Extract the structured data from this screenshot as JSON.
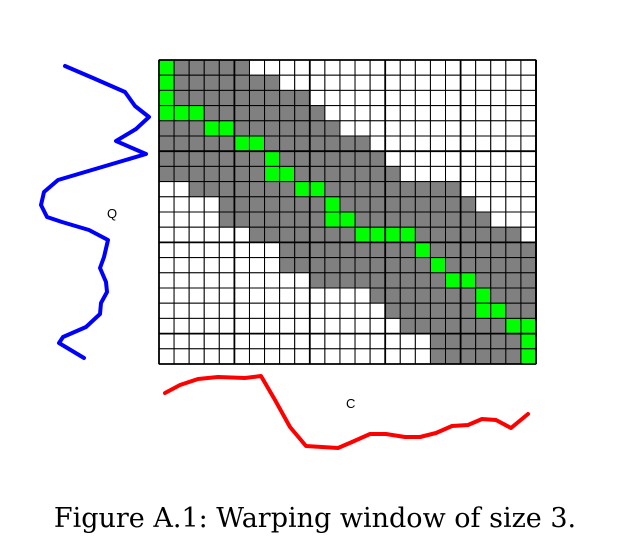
{
  "figure": {
    "caption": "Figure A.1: Warping window of size 3.",
    "q_label": "Q",
    "c_label": "C"
  },
  "grid": {
    "cols": 25,
    "rows": 20,
    "window_size": 3,
    "colors": {
      "cell": "#ffffff",
      "window": "#808080",
      "path": "#00ff00",
      "line": "#000000"
    },
    "path": [
      [
        0,
        0
      ],
      [
        0,
        1
      ],
      [
        0,
        2
      ],
      [
        0,
        3
      ],
      [
        1,
        3
      ],
      [
        2,
        3
      ],
      [
        3,
        4
      ],
      [
        4,
        4
      ],
      [
        5,
        5
      ],
      [
        6,
        5
      ],
      [
        7,
        6
      ],
      [
        7,
        7
      ],
      [
        8,
        7
      ],
      [
        9,
        8
      ],
      [
        10,
        8
      ],
      [
        11,
        9
      ],
      [
        11,
        10
      ],
      [
        12,
        10
      ],
      [
        13,
        11
      ],
      [
        14,
        11
      ],
      [
        15,
        11
      ],
      [
        16,
        11
      ],
      [
        17,
        12
      ],
      [
        18,
        13
      ],
      [
        19,
        14
      ],
      [
        20,
        14
      ],
      [
        21,
        15
      ],
      [
        21,
        16
      ],
      [
        22,
        16
      ],
      [
        23,
        17
      ],
      [
        24,
        17
      ],
      [
        24,
        18
      ],
      [
        24,
        19
      ]
    ]
  },
  "series": {
    "q_color": "#0000ff",
    "c_color": "#ff0000"
  }
}
